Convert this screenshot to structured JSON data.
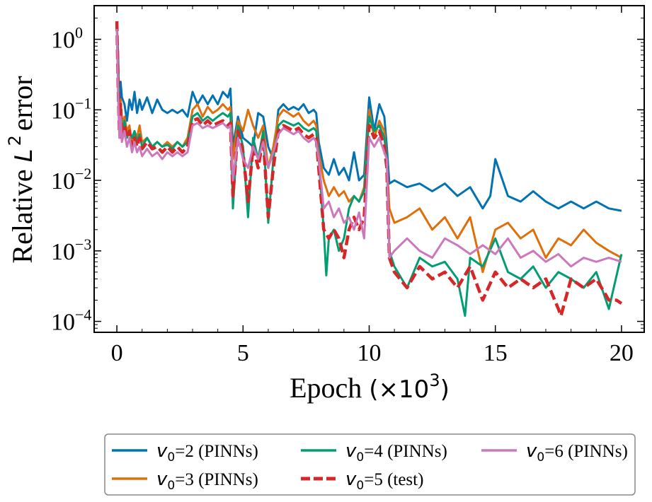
{
  "chart_data": {
    "type": "line",
    "xlabel": "Epoch",
    "xlabel_unit": "(×10",
    "xlabel_exp": "3",
    "xlabel_close": ")",
    "ylabel": "Relative",
    "ylabel_symbol": "L",
    "ylabel_exp": "2",
    "ylabel_tail": "error",
    "xlim": [
      -0.9,
      20.9
    ],
    "ylim": [
      7e-05,
      3.0
    ],
    "yscale": "log",
    "xticks": [
      0,
      5,
      10,
      15,
      20
    ],
    "xtick_labels": [
      "0",
      "5",
      "10",
      "15",
      "20"
    ],
    "yticks": [
      {
        "value": 1,
        "base": "10",
        "exp": "0"
      },
      {
        "value": 0.1,
        "base": "10",
        "exp": "−1"
      },
      {
        "value": 0.01,
        "base": "10",
        "exp": "−2"
      },
      {
        "value": 0.001,
        "base": "10",
        "exp": "−3"
      },
      {
        "value": 0.0001,
        "base": "10",
        "exp": "−4"
      }
    ],
    "legend_position": "bottom-center",
    "series": [
      {
        "name_sym": "v",
        "name_sub": "0",
        "name_rest": "=2 (PINNs)",
        "color": "#0173b2",
        "dashed": false,
        "x": [
          0,
          0.05,
          0.1,
          0.15,
          0.2,
          0.3,
          0.4,
          0.5,
          0.6,
          0.7,
          0.8,
          0.9,
          1.0,
          1.2,
          1.4,
          1.6,
          1.8,
          2.0,
          2.2,
          2.4,
          2.6,
          2.8,
          3.0,
          3.2,
          3.4,
          3.6,
          3.8,
          4.0,
          4.2,
          4.4,
          4.5,
          4.6,
          4.8,
          5.0,
          5.2,
          5.4,
          5.6,
          5.8,
          6.0,
          6.2,
          6.4,
          6.6,
          6.8,
          7.0,
          7.2,
          7.4,
          7.6,
          7.8,
          7.9,
          8.0,
          8.2,
          8.4,
          8.6,
          8.8,
          9.0,
          9.2,
          9.4,
          9.6,
          9.8,
          10.0,
          10.2,
          10.4,
          10.6,
          10.7,
          10.8,
          11.0,
          11.5,
          12.0,
          12.5,
          13.0,
          13.5,
          14.0,
          14.5,
          14.8,
          15.0,
          15.5,
          16.0,
          16.5,
          17.0,
          17.5,
          18.0,
          18.5,
          19.0,
          19.5,
          20.0
        ],
        "y": [
          1.7,
          0.6,
          0.09,
          0.25,
          0.15,
          0.12,
          0.07,
          0.14,
          0.1,
          0.18,
          0.09,
          0.14,
          0.1,
          0.15,
          0.09,
          0.14,
          0.1,
          0.09,
          0.1,
          0.09,
          0.1,
          0.08,
          0.18,
          0.12,
          0.16,
          0.12,
          0.16,
          0.12,
          0.18,
          0.15,
          0.2,
          0.03,
          0.08,
          0.04,
          0.035,
          0.03,
          0.09,
          0.08,
          0.03,
          0.02,
          0.1,
          0.12,
          0.1,
          0.11,
          0.1,
          0.12,
          0.09,
          0.1,
          0.09,
          0.035,
          0.015,
          0.012,
          0.02,
          0.012,
          0.015,
          0.01,
          0.025,
          0.01,
          0.012,
          0.15,
          0.05,
          0.12,
          0.08,
          0.03,
          0.009,
          0.01,
          0.008,
          0.009,
          0.007,
          0.009,
          0.006,
          0.008,
          0.004,
          0.006,
          0.02,
          0.006,
          0.005,
          0.007,
          0.005,
          0.004,
          0.005,
          0.004,
          0.005,
          0.004,
          0.0037
        ]
      },
      {
        "name_sym": "v",
        "name_sub": "0",
        "name_rest": "=3 (PINNs)",
        "color": "#de6f0b",
        "dashed": false,
        "x": [
          0,
          0.05,
          0.1,
          0.15,
          0.2,
          0.3,
          0.4,
          0.5,
          0.6,
          0.7,
          0.8,
          0.9,
          1.0,
          1.2,
          1.4,
          1.6,
          1.8,
          2.0,
          2.2,
          2.4,
          2.6,
          2.8,
          3.0,
          3.2,
          3.4,
          3.6,
          3.8,
          4.0,
          4.2,
          4.4,
          4.5,
          4.6,
          4.8,
          5.0,
          5.2,
          5.4,
          5.6,
          5.8,
          6.0,
          6.2,
          6.4,
          6.6,
          6.8,
          7.0,
          7.2,
          7.4,
          7.6,
          7.8,
          7.9,
          8.0,
          8.2,
          8.4,
          8.6,
          8.8,
          9.0,
          9.2,
          9.4,
          9.6,
          9.8,
          10.0,
          10.2,
          10.4,
          10.6,
          10.7,
          10.8,
          11.0,
          11.5,
          12.0,
          12.5,
          13.0,
          13.5,
          14.0,
          14.5,
          15.0,
          15.5,
          16.0,
          16.5,
          17.0,
          17.5,
          18.0,
          18.5,
          19.0,
          19.5,
          20.0
        ],
        "y": [
          1.6,
          0.4,
          0.07,
          0.14,
          0.06,
          0.08,
          0.05,
          0.06,
          0.03,
          0.05,
          0.04,
          0.06,
          0.035,
          0.04,
          0.03,
          0.035,
          0.03,
          0.035,
          0.03,
          0.035,
          0.03,
          0.04,
          0.1,
          0.12,
          0.08,
          0.11,
          0.09,
          0.1,
          0.12,
          0.1,
          0.11,
          0.02,
          0.07,
          0.05,
          0.1,
          0.06,
          0.04,
          0.06,
          0.015,
          0.03,
          0.08,
          0.1,
          0.09,
          0.08,
          0.09,
          0.07,
          0.06,
          0.07,
          0.06,
          0.025,
          0.01,
          0.006,
          0.008,
          0.006,
          0.007,
          0.005,
          0.006,
          0.005,
          0.008,
          0.1,
          0.04,
          0.07,
          0.05,
          0.02,
          0.004,
          0.0025,
          0.003,
          0.004,
          0.002,
          0.003,
          0.0015,
          0.003,
          0.0005,
          0.002,
          0.0025,
          0.0015,
          0.002,
          0.0008,
          0.0015,
          0.0012,
          0.002,
          0.0013,
          0.001,
          0.0008
        ]
      },
      {
        "name_sym": "v",
        "name_sub": "0",
        "name_rest": "=4 (PINNs)",
        "color": "#029e73",
        "dashed": false,
        "x": [
          0,
          0.05,
          0.1,
          0.15,
          0.2,
          0.3,
          0.4,
          0.5,
          0.6,
          0.7,
          0.8,
          0.9,
          1.0,
          1.2,
          1.4,
          1.6,
          1.8,
          2.0,
          2.2,
          2.4,
          2.6,
          2.8,
          3.0,
          3.2,
          3.4,
          3.6,
          3.8,
          4.0,
          4.2,
          4.4,
          4.5,
          4.6,
          4.8,
          5.0,
          5.2,
          5.4,
          5.6,
          5.8,
          6.0,
          6.2,
          6.4,
          6.6,
          6.8,
          7.0,
          7.2,
          7.4,
          7.6,
          7.8,
          7.9,
          8.0,
          8.2,
          8.3,
          8.4,
          8.6,
          8.8,
          9.0,
          9.2,
          9.4,
          9.6,
          9.8,
          10.0,
          10.2,
          10.4,
          10.6,
          10.7,
          10.8,
          11.0,
          11.5,
          12.0,
          12.5,
          13.0,
          13.5,
          13.8,
          14.0,
          14.5,
          15.0,
          15.5,
          16.0,
          16.5,
          17.0,
          17.5,
          18.0,
          18.5,
          19.0,
          19.5,
          20.0
        ],
        "y": [
          1.5,
          0.3,
          0.06,
          0.1,
          0.05,
          0.07,
          0.04,
          0.05,
          0.04,
          0.05,
          0.035,
          0.045,
          0.03,
          0.04,
          0.03,
          0.035,
          0.03,
          0.032,
          0.028,
          0.035,
          0.03,
          0.035,
          0.08,
          0.09,
          0.07,
          0.08,
          0.07,
          0.08,
          0.09,
          0.08,
          0.09,
          0.004,
          0.06,
          0.03,
          0.003,
          0.04,
          0.02,
          0.05,
          0.0025,
          0.02,
          0.06,
          0.07,
          0.065,
          0.06,
          0.065,
          0.055,
          0.05,
          0.055,
          0.05,
          0.02,
          0.002,
          0.00045,
          0.0015,
          0.002,
          0.001,
          0.0015,
          0.004,
          0.006,
          0.005,
          0.007,
          0.08,
          0.05,
          0.06,
          0.04,
          0.02,
          0.001,
          0.0006,
          0.0003,
          0.0008,
          0.0006,
          0.0007,
          0.0004,
          0.00012,
          0.0008,
          0.0006,
          0.0015,
          0.0005,
          0.0004,
          0.0006,
          0.0003,
          0.0005,
          0.0004,
          0.0003,
          0.0005,
          0.00015,
          0.0009
        ]
      },
      {
        "name_sym": "v",
        "name_sub": "0",
        "name_rest": "=5 (test)",
        "color": "#d62728",
        "dashed": true,
        "x": [
          0,
          0.05,
          0.1,
          0.15,
          0.2,
          0.3,
          0.4,
          0.5,
          0.6,
          0.7,
          0.8,
          0.9,
          1.0,
          1.2,
          1.4,
          1.6,
          1.8,
          2.0,
          2.2,
          2.4,
          2.6,
          2.8,
          3.0,
          3.2,
          3.4,
          3.6,
          3.8,
          4.0,
          4.2,
          4.4,
          4.5,
          4.6,
          4.8,
          5.0,
          5.2,
          5.4,
          5.6,
          5.8,
          6.0,
          6.2,
          6.4,
          6.6,
          6.8,
          7.0,
          7.2,
          7.4,
          7.6,
          7.8,
          7.9,
          8.0,
          8.2,
          8.4,
          8.6,
          8.8,
          9.0,
          9.2,
          9.4,
          9.6,
          9.8,
          10.0,
          10.2,
          10.4,
          10.6,
          10.7,
          10.8,
          11.0,
          11.5,
          12.0,
          12.5,
          13.0,
          13.5,
          14.0,
          14.5,
          15.0,
          15.5,
          16.0,
          16.5,
          17.0,
          17.5,
          17.6,
          18.0,
          18.5,
          19.0,
          19.5,
          19.8,
          20.0
        ],
        "y": [
          1.8,
          0.2,
          0.05,
          0.12,
          0.04,
          0.06,
          0.04,
          0.05,
          0.03,
          0.04,
          0.03,
          0.04,
          0.028,
          0.035,
          0.028,
          0.03,
          0.025,
          0.03,
          0.025,
          0.03,
          0.025,
          0.03,
          0.07,
          0.075,
          0.06,
          0.07,
          0.06,
          0.065,
          0.07,
          0.06,
          0.065,
          0.006,
          0.05,
          0.025,
          0.005,
          0.03,
          0.015,
          0.04,
          0.003,
          0.015,
          0.05,
          0.06,
          0.055,
          0.05,
          0.055,
          0.045,
          0.04,
          0.045,
          0.04,
          0.015,
          0.002,
          0.0015,
          0.002,
          0.0015,
          0.0008,
          0.002,
          0.003,
          0.002,
          0.003,
          0.06,
          0.04,
          0.05,
          0.03,
          0.015,
          0.0008,
          0.0005,
          0.0003,
          0.0006,
          0.0004,
          0.0005,
          0.0003,
          0.0006,
          0.0002,
          0.0005,
          0.0003,
          0.0004,
          0.0003,
          0.0004,
          0.00015,
          0.00012,
          0.0004,
          0.0003,
          0.0004,
          0.0002,
          0.0002,
          0.00018
        ]
      },
      {
        "name_sym": "v",
        "name_sub": "0",
        "name_rest": "=6 (PINNs)",
        "color": "#cc78bc",
        "dashed": false,
        "x": [
          0,
          0.05,
          0.1,
          0.15,
          0.2,
          0.3,
          0.4,
          0.5,
          0.6,
          0.7,
          0.8,
          0.9,
          1.0,
          1.2,
          1.4,
          1.6,
          1.8,
          2.0,
          2.2,
          2.4,
          2.6,
          2.8,
          3.0,
          3.2,
          3.4,
          3.6,
          3.8,
          4.0,
          4.2,
          4.4,
          4.5,
          4.6,
          4.8,
          5.0,
          5.2,
          5.4,
          5.6,
          5.8,
          6.0,
          6.2,
          6.4,
          6.6,
          6.8,
          7.0,
          7.2,
          7.4,
          7.6,
          7.8,
          7.9,
          8.0,
          8.2,
          8.4,
          8.6,
          8.8,
          9.0,
          9.2,
          9.4,
          9.6,
          9.8,
          10.0,
          10.2,
          10.4,
          10.6,
          10.7,
          10.8,
          11.0,
          11.5,
          12.0,
          12.5,
          13.0,
          13.5,
          14.0,
          14.5,
          15.0,
          15.5,
          16.0,
          16.5,
          17.0,
          17.5,
          18.0,
          18.5,
          19.0,
          19.5,
          20.0
        ],
        "y": [
          1.4,
          0.15,
          0.04,
          0.08,
          0.035,
          0.05,
          0.03,
          0.04,
          0.025,
          0.035,
          0.025,
          0.03,
          0.022,
          0.028,
          0.022,
          0.025,
          0.02,
          0.025,
          0.022,
          0.025,
          0.022,
          0.025,
          0.06,
          0.065,
          0.055,
          0.06,
          0.055,
          0.06,
          0.065,
          0.055,
          0.06,
          0.01,
          0.04,
          0.02,
          0.015,
          0.03,
          0.02,
          0.035,
          0.015,
          0.025,
          0.045,
          0.055,
          0.05,
          0.045,
          0.05,
          0.04,
          0.035,
          0.04,
          0.035,
          0.02,
          0.004,
          0.005,
          0.003,
          0.004,
          0.0025,
          0.003,
          0.002,
          0.0035,
          0.0015,
          0.04,
          0.03,
          0.04,
          0.025,
          0.02,
          0.0008,
          0.001,
          0.0015,
          0.001,
          0.0008,
          0.0015,
          0.0012,
          0.0009,
          0.0012,
          0.0009,
          0.0015,
          0.0008,
          0.001,
          0.0007,
          0.0009,
          0.0006,
          0.0008,
          0.0007,
          0.0008,
          0.0007
        ]
      }
    ]
  }
}
